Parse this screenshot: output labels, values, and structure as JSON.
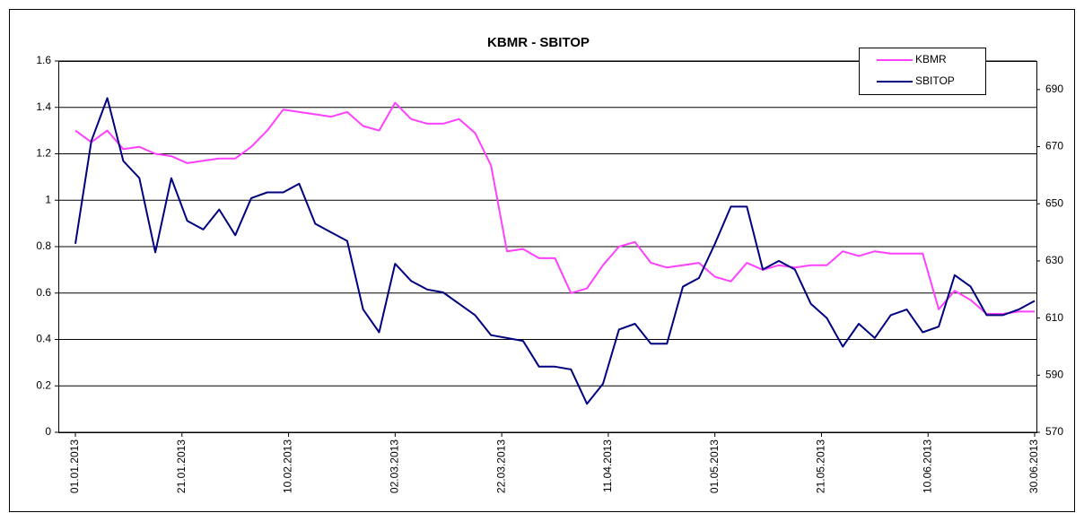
{
  "chart_data": {
    "type": "line",
    "title": "KBMR - SBITOP",
    "x": [
      "01.01.2013",
      "04.01.2013",
      "07.01.2013",
      "10.01.2013",
      "13.01.2013",
      "16.01.2013",
      "19.01.2013",
      "22.01.2013",
      "25.01.2013",
      "28.01.2013",
      "31.01.2013",
      "03.02.2013",
      "06.02.2013",
      "09.02.2013",
      "12.02.2013",
      "15.02.2013",
      "18.02.2013",
      "21.02.2013",
      "24.02.2013",
      "27.02.2013",
      "02.03.2013",
      "05.03.2013",
      "08.03.2013",
      "11.03.2013",
      "14.03.2013",
      "17.03.2013",
      "20.03.2013",
      "23.03.2013",
      "26.03.2013",
      "29.03.2013",
      "01.04.2013",
      "04.04.2013",
      "07.04.2013",
      "10.04.2013",
      "13.04.2013",
      "16.04.2013",
      "19.04.2013",
      "22.04.2013",
      "25.04.2013",
      "28.04.2013",
      "01.05.2013",
      "04.05.2013",
      "07.05.2013",
      "10.05.2013",
      "13.05.2013",
      "16.05.2013",
      "19.05.2013",
      "22.05.2013",
      "25.05.2013",
      "28.05.2013",
      "31.05.2013",
      "03.06.2013",
      "06.06.2013",
      "09.06.2013",
      "12.06.2013",
      "15.06.2013",
      "18.06.2013",
      "21.06.2013",
      "24.06.2013",
      "27.06.2013",
      "30.06.2013"
    ],
    "series": [
      {
        "name": "KBMR",
        "color": "#ff40ff",
        "axis": "y",
        "values": [
          1.3,
          1.25,
          1.3,
          1.22,
          1.23,
          1.2,
          1.19,
          1.16,
          1.17,
          1.18,
          1.18,
          1.23,
          1.3,
          1.39,
          1.38,
          1.37,
          1.36,
          1.38,
          1.32,
          1.3,
          1.42,
          1.35,
          1.33,
          1.33,
          1.35,
          1.29,
          1.15,
          0.78,
          0.79,
          0.75,
          0.75,
          0.6,
          0.62,
          0.72,
          0.8,
          0.82,
          0.73,
          0.71,
          0.72,
          0.73,
          0.67,
          0.65,
          0.73,
          0.7,
          0.72,
          0.71,
          0.72,
          0.72,
          0.78,
          0.76,
          0.78,
          0.77,
          0.77,
          0.77,
          0.53,
          0.61,
          0.57,
          0.51,
          0.51,
          0.52,
          0.52
        ]
      },
      {
        "name": "SBITOP",
        "color": "#000080",
        "axis": "y2",
        "values": [
          636,
          672,
          687,
          665,
          659,
          633,
          659,
          644,
          641,
          648,
          639,
          652,
          654,
          654,
          657,
          643,
          640,
          637,
          613,
          605,
          629,
          623,
          620,
          619,
          615,
          611,
          604,
          603,
          602,
          593,
          593,
          592,
          580,
          587,
          606,
          608,
          601,
          601,
          621,
          624,
          636,
          649,
          649,
          627,
          630,
          627,
          615,
          610,
          600,
          608,
          603,
          611,
          613,
          605,
          607,
          625,
          621,
          611,
          611,
          613,
          616
        ]
      }
    ],
    "xlim": [
      "01.01.2013",
      "30.06.2013"
    ],
    "xticks": [
      "01.01.2013",
      "21.01.2013",
      "10.02.2013",
      "02.03.2013",
      "22.03.2013",
      "11.04.2013",
      "01.05.2013",
      "21.05.2013",
      "10.06.2013",
      "30.06.2013"
    ],
    "ylim": [
      0,
      1.6
    ],
    "yticks": [
      0,
      0.2,
      0.4,
      0.6,
      0.8,
      1,
      1.2,
      1.4,
      1.6
    ],
    "y2lim": [
      570,
      700
    ],
    "y2ticks": [
      570,
      590,
      610,
      630,
      650,
      670,
      690
    ],
    "grid": true,
    "legend": "upper right"
  }
}
